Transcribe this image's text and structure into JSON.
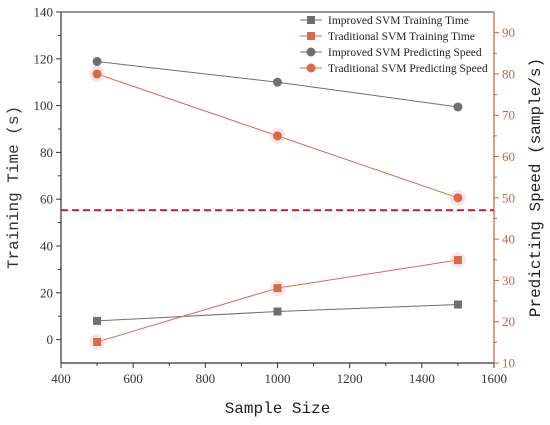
{
  "chart_data": {
    "type": "line",
    "title": "",
    "x": [
      500,
      1000,
      1500
    ],
    "xlabel": "Sample Size",
    "xlim": [
      400,
      1600
    ],
    "xticks": [
      400,
      600,
      800,
      1000,
      1200,
      1400,
      1600
    ],
    "ylabel_left": "Training Time (s)",
    "ylim_left": [
      -10,
      140
    ],
    "yticks_left": [
      0,
      20,
      40,
      60,
      80,
      100,
      120,
      140
    ],
    "ylabel_right": "Predicting Speed (sample/s)",
    "ylim_right": [
      10,
      95
    ],
    "yticks_right": [
      10,
      20,
      30,
      40,
      50,
      60,
      70,
      80,
      90
    ],
    "grid": false,
    "legend_position": "top-right",
    "reference_line": {
      "axis": "right",
      "value": 47,
      "style": "dashed",
      "color": "#b22222"
    },
    "series": [
      {
        "name": "Improved SVM Training Time",
        "axis": "left",
        "marker": "square",
        "color": "#6f6f6f",
        "values": [
          8,
          12,
          15
        ]
      },
      {
        "name": "Traditional SVM Training Time",
        "axis": "left",
        "marker": "square",
        "color": "#d46b4f",
        "values": [
          -1,
          22,
          34
        ]
      },
      {
        "name": "Improved SVM Predicting Speed",
        "axis": "right",
        "marker": "circle",
        "color": "#6f6f6f",
        "values": [
          83,
          78,
          72
        ]
      },
      {
        "name": "Traditional SVM Predicting Speed",
        "axis": "right",
        "marker": "circle",
        "color": "#d46b4f",
        "values": [
          80,
          65,
          50
        ]
      }
    ]
  },
  "colors": {
    "left_axis": "#333333",
    "right_axis": "#c9604a"
  }
}
